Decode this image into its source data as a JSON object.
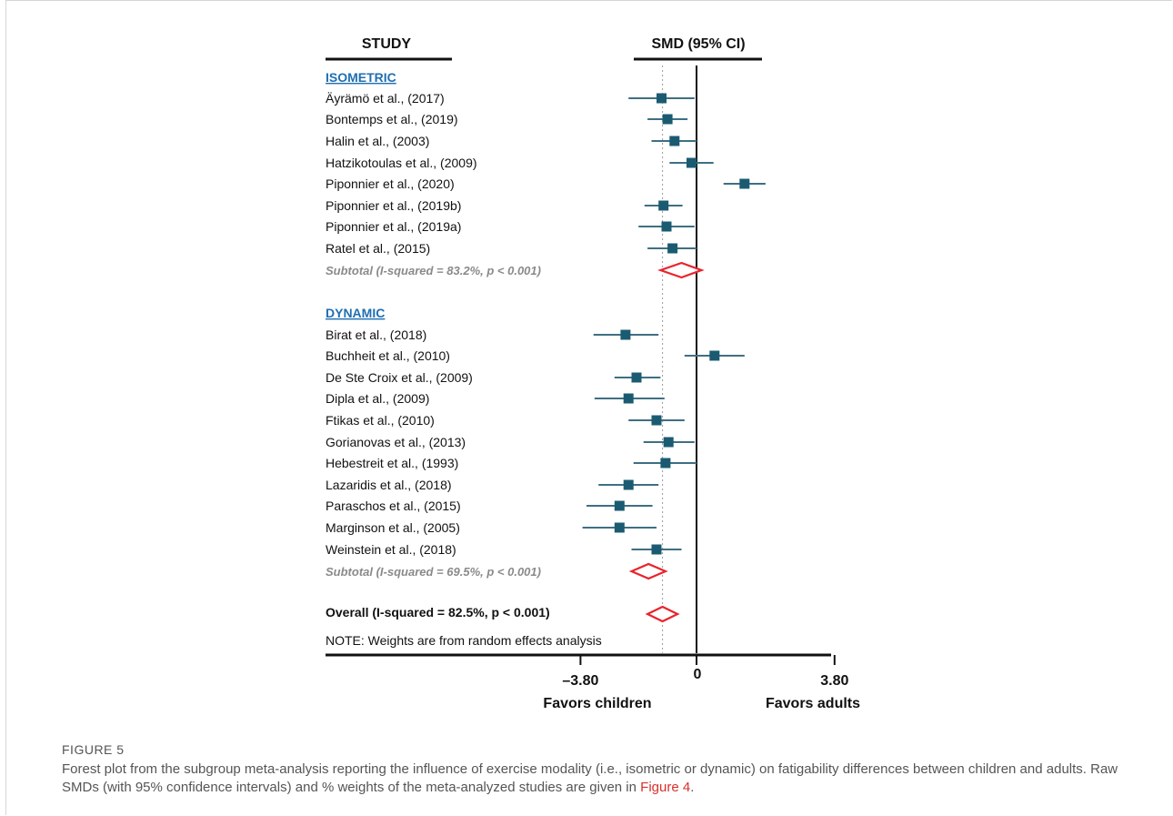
{
  "chart_data": {
    "type": "forest",
    "headers": {
      "study": "STUDY",
      "effect": "SMD (95% CI)"
    },
    "groups": [
      {
        "name": "ISOMETRIC",
        "studies": [
          {
            "label": "Äyrämö et al., (2017)",
            "smd": -0.35,
            "lo": -0.68,
            "hi": -0.02
          },
          {
            "label": "Bontemps et al., (2019)",
            "smd": -0.29,
            "lo": -0.49,
            "hi": -0.09
          },
          {
            "label": "Halin et al., (2003)",
            "smd": -0.22,
            "lo": -0.45,
            "hi": 0.0
          },
          {
            "label": "Hatzikotoulas et al., (2009)",
            "smd": -0.05,
            "lo": -0.27,
            "hi": 0.17
          },
          {
            "label": "Piponnier et al., (2020)",
            "smd": 0.48,
            "lo": 0.27,
            "hi": 0.69
          },
          {
            "label": "Piponnier et al., (2019b)",
            "smd": -0.33,
            "lo": -0.52,
            "hi": -0.14
          },
          {
            "label": "Piponnier et al., (2019a)",
            "smd": -0.3,
            "lo": -0.58,
            "hi": -0.02
          },
          {
            "label": "Ratel et al., (2015)",
            "smd": -0.24,
            "lo": -0.49,
            "hi": 0.0
          }
        ],
        "subtotal": {
          "label": "Subtotal (I-squared = 83.2%, p < 0.001)",
          "smd": -0.15,
          "lo": -0.36,
          "hi": 0.05
        }
      },
      {
        "name": "DYNAMIC",
        "studies": [
          {
            "label": "Birat et al., (2018)",
            "smd": -0.71,
            "lo": -1.03,
            "hi": -0.38
          },
          {
            "label": "Buchheit et al., (2010)",
            "smd": 0.18,
            "lo": -0.12,
            "hi": 0.48
          },
          {
            "label": "De Ste Croix et al., (2009)",
            "smd": -0.6,
            "lo": -0.82,
            "hi": -0.36
          },
          {
            "label": "Dipla et al., (2009)",
            "smd": -0.68,
            "lo": -1.02,
            "hi": -0.32
          },
          {
            "label": "Ftikas et al., (2010)",
            "smd": -0.4,
            "lo": -0.68,
            "hi": -0.12
          },
          {
            "label": "Gorianovas et al., (2013)",
            "smd": -0.28,
            "lo": -0.53,
            "hi": -0.02
          },
          {
            "label": "Hebestreit et al., (1993)",
            "smd": -0.31,
            "lo": -0.63,
            "hi": 0.0
          },
          {
            "label": "Lazaridis et al., (2018)",
            "smd": -0.68,
            "lo": -0.98,
            "hi": -0.38
          },
          {
            "label": "Paraschos et al., (2015)",
            "smd": -0.77,
            "lo": -1.1,
            "hi": -0.44
          },
          {
            "label": "Marginson et al., (2005)",
            "smd": -0.77,
            "lo": -1.14,
            "hi": -0.4
          },
          {
            "label": "Weinstein et al., (2018)",
            "smd": -0.4,
            "lo": -0.65,
            "hi": -0.15
          }
        ],
        "subtotal": {
          "label": "Subtotal (I-squared = 69.5%, p < 0.001)",
          "smd": -0.48,
          "lo": -0.65,
          "hi": -0.31
        }
      }
    ],
    "overall": {
      "label": "Overall (I-squared = 82.5%, p < 0.001)",
      "smd": -0.34,
      "lo": -0.49,
      "hi": -0.19
    },
    "note": "NOTE: Weights are from random effects analysis",
    "x_ticks": [
      {
        "value": -1.16,
        "label": "–3.80"
      },
      {
        "value": 0,
        "label": "0"
      },
      {
        "value": 1.38,
        "label": "3.80"
      }
    ],
    "xlabel_left": "Favors children",
    "xlabel_right": "Favors adults",
    "colors": {
      "marker": "#1b5b72",
      "ci": "#3f6f82",
      "diamond": "#e8242b",
      "group_label": "#1f6fb2",
      "subtotal_text": "#8a8a8a",
      "axis": "#111111"
    }
  },
  "caption": {
    "title": "FIGURE 5",
    "text": "Forest plot from the subgroup meta-analysis reporting the influence of exercise modality (i.e., isometric or dynamic) on fatigability differences between children and adults. Raw SMDs (with 95% confidence intervals) and % weights of the meta-analyzed studies are given in ",
    "link": "Figure 4",
    "end": "."
  }
}
